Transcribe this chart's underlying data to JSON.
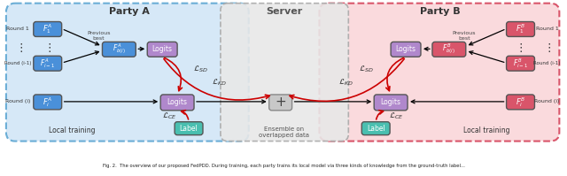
{
  "party_a_label": "Party A",
  "party_b_label": "Party B",
  "server_label": "Server",
  "server_sub_label": "Ensemble on\noverlapped data",
  "local_training_label": "Local training",
  "party_a_bg": "#d6e8f7",
  "party_b_bg": "#fadadd",
  "server_bg": "#e8e8e8",
  "box_blue": "#4a90d9",
  "box_pink": "#d9556a",
  "box_purple": "#b088cc",
  "box_teal": "#4abfb0",
  "arrow_red": "#cc0000",
  "caption": "Fig. 2.  The overview of our proposed FedPDD. During training, each party trains its local model via three kinds of knowledge from the ground-truth label..."
}
